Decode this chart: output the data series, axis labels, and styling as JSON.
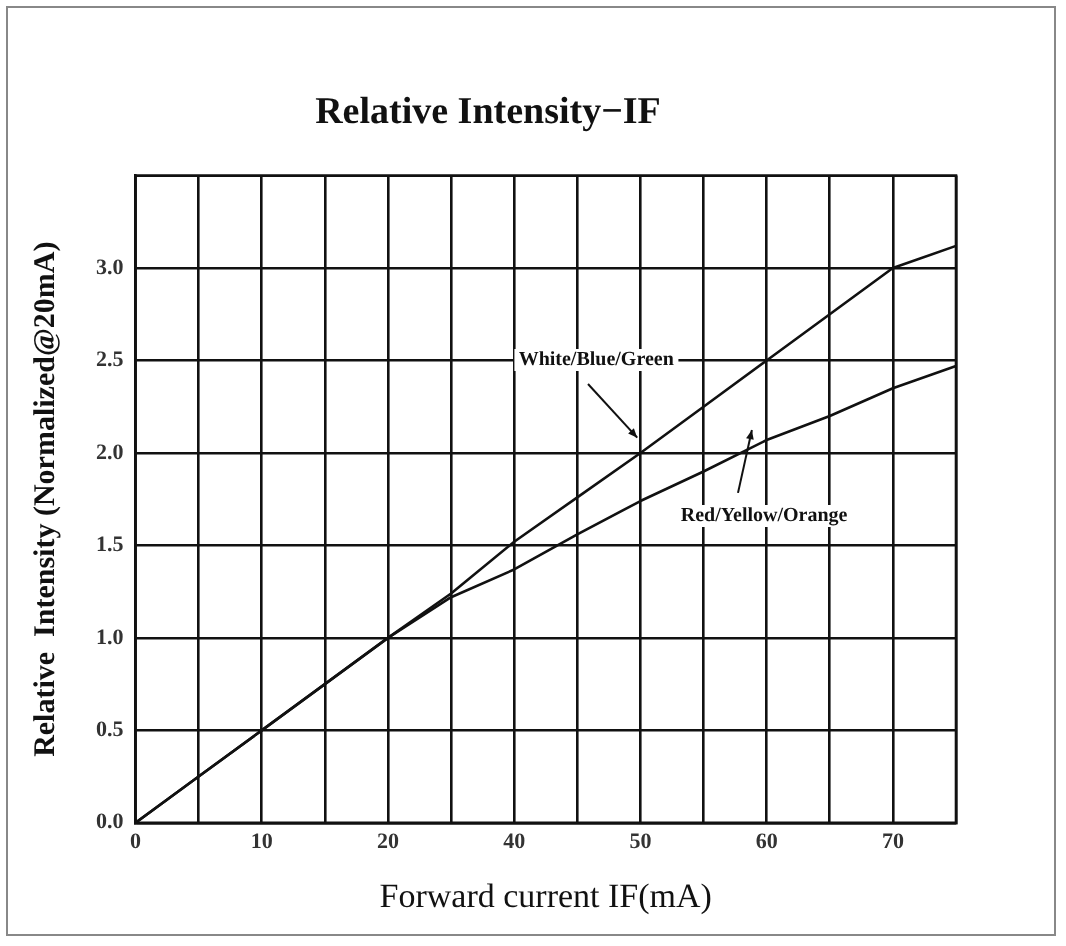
{
  "chart_data": {
    "type": "line",
    "title": "Relative Intensity−IF",
    "xlabel": "Forward current IF(mA)",
    "ylabel": "Relative  Intensity (Normalized@20mA)",
    "categories": [
      "0",
      null,
      "10",
      null,
      "20",
      null,
      "40",
      null,
      "50",
      null,
      "60",
      null,
      "70",
      null
    ],
    "series": [
      {
        "name": "White/Blue/Green",
        "color": "#111111",
        "values": [
          0,
          0.25,
          0.5,
          0.75,
          1.0,
          1.24,
          1.52,
          1.76,
          2.0,
          2.25,
          2.5,
          2.75,
          3.0,
          3.12
        ]
      },
      {
        "name": "Red/Yellow/Orange",
        "color": "#111111",
        "values": [
          0,
          0.25,
          0.5,
          0.75,
          1.0,
          1.22,
          1.37,
          1.56,
          1.74,
          1.9,
          2.07,
          2.2,
          2.35,
          2.47
        ]
      }
    ],
    "ylim": [
      0,
      3.5
    ],
    "yticks": [
      {
        "value": 0,
        "label": "0.0"
      },
      {
        "value": 0.5,
        "label": "0.5"
      },
      {
        "value": 1,
        "label": "1.0"
      },
      {
        "value": 1.5,
        "label": "1.5"
      },
      {
        "value": 2,
        "label": "2.0"
      },
      {
        "value": 2.5,
        "label": "2.5"
      },
      {
        "value": 3,
        "label": "3.0"
      }
    ],
    "grid": true,
    "marker": "none",
    "line_style": "solid"
  }
}
